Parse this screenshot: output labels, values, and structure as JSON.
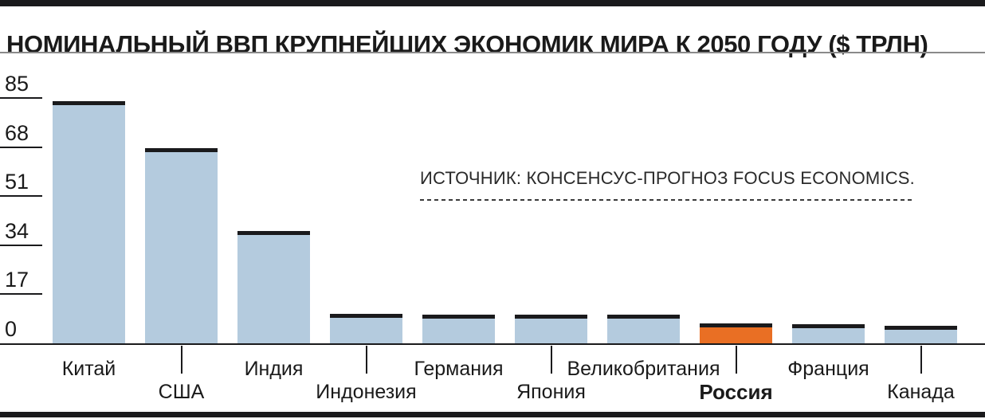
{
  "header": {
    "title": "НОМИНАЛЬНЫЙ ВВП КРУПНЕЙШИХ ЭКОНОМИК МИРА К 2050 ГОДУ ($ ТРЛН)"
  },
  "source": {
    "label": "ИСТОЧНИК: КОНСЕНСУС-ПРОГНОЗ FOCUS ECONOMICS."
  },
  "chart_data": {
    "type": "bar",
    "title": "НОМИНАЛЬНЫЙ ВВП КРУПНЕЙШИХ ЭКОНОМИК МИРА К 2050 ГОДУ ($ ТРЛН)",
    "unit": "$ трлн",
    "categories": [
      "Китай",
      "США",
      "Индия",
      "Индонезия",
      "Германия",
      "Япония",
      "Великобритания",
      "Россия",
      "Франция",
      "Канада"
    ],
    "values": [
      84,
      67.5,
      39,
      10.3,
      9.9,
      9.9,
      10,
      6.8,
      6.6,
      6
    ],
    "ylim": [
      0,
      85
    ],
    "yticks": [
      0,
      17,
      34,
      51,
      68,
      85
    ],
    "grid": false,
    "legend": null,
    "highlighted_category": "Россия",
    "source_note": "ИСТОЧНИК: КОНСЕНСУС-ПРОГНОЗ FOCUS ECONOMICS.",
    "colors": {
      "bar": "#b4cbde",
      "highlight": "#e96f24",
      "cap": "#1a1a1c",
      "text": "#1a1a1a",
      "divider": "#8a8a8a"
    }
  }
}
